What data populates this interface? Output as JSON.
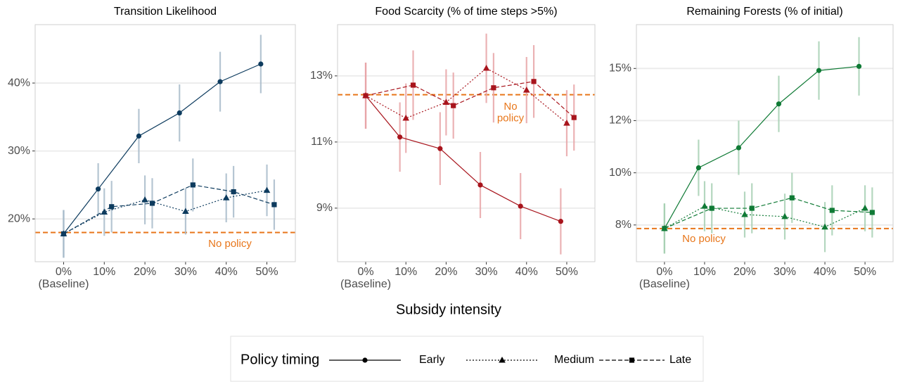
{
  "chart_data": [
    {
      "type": "line",
      "title": "Transition Likelihood",
      "categories": [
        "0%\n(Baseline)",
        "10%",
        "20%",
        "30%",
        "40%",
        "50%"
      ],
      "ylim": [
        13.7,
        48.6
      ],
      "yticks": [
        {
          "value": 20,
          "label": "20%"
        },
        {
          "value": 30,
          "label": "30%"
        },
        {
          "value": 40,
          "label": "40%"
        }
      ],
      "grid": true,
      "error_color": "#a9bccb",
      "reference": {
        "value": 18.0,
        "label": "No policy",
        "color": "#e8761a"
      },
      "series": [
        {
          "name": "Early",
          "color": "#0d3b5e",
          "line_style": "solid",
          "marker": "circle",
          "values": [
            17.8,
            24.4,
            32.2,
            35.6,
            40.2,
            42.8
          ],
          "errors": [
            3.5,
            3.8,
            4.0,
            4.2,
            4.4,
            4.3
          ]
        },
        {
          "name": "Medium",
          "color": "#0d3b5e",
          "line_style": "dotted",
          "marker": "triangle",
          "values": [
            17.8,
            21.0,
            22.8,
            21.1,
            23.1,
            24.2
          ],
          "errors": [
            3.5,
            3.5,
            3.6,
            3.4,
            3.6,
            3.8
          ]
        },
        {
          "name": "Late",
          "color": "#0d3b5e",
          "line_style": "dashed",
          "marker": "square",
          "values": [
            17.8,
            21.8,
            22.3,
            25.0,
            24.0,
            22.1
          ],
          "errors": [
            3.5,
            3.8,
            3.7,
            3.9,
            3.8,
            3.7
          ]
        }
      ]
    },
    {
      "type": "line",
      "title": "Food Scarcity (% of time steps >5%)",
      "categories": [
        "0%\n(Baseline)",
        "10%",
        "20%",
        "30%",
        "40%",
        "50%"
      ],
      "ylim": [
        7.38,
        14.55
      ],
      "yticks": [
        {
          "value": 9,
          "label": "9%"
        },
        {
          "value": 11,
          "label": "11%"
        },
        {
          "value": 13,
          "label": "13%"
        }
      ],
      "grid": true,
      "error_color": "#e8a5a8",
      "reference": {
        "value": 12.43,
        "label": "No\npolicy",
        "color": "#e8761a"
      },
      "series": [
        {
          "name": "Early",
          "color": "#a8141c",
          "line_style": "solid",
          "marker": "circle",
          "values": [
            12.4,
            11.15,
            10.8,
            9.7,
            9.06,
            8.6
          ],
          "errors": [
            1.0,
            1.05,
            1.1,
            1.0,
            1.0,
            1.0
          ]
        },
        {
          "name": "Medium",
          "color": "#a8141c",
          "line_style": "dotted",
          "marker": "triangle",
          "values": [
            12.4,
            11.72,
            12.2,
            13.23,
            12.57,
            11.57
          ],
          "errors": [
            1.0,
            1.05,
            1.0,
            1.05,
            1.0,
            1.0
          ]
        },
        {
          "name": "Late",
          "color": "#a8141c",
          "line_style": "dashed",
          "marker": "square",
          "values": [
            12.4,
            12.72,
            12.1,
            12.64,
            12.83,
            11.74
          ],
          "errors": [
            1.0,
            1.05,
            1.0,
            1.05,
            1.1,
            1.0
          ]
        }
      ]
    },
    {
      "type": "line",
      "title": "Remaining Forests (% of initial)",
      "categories": [
        "0%\n(Baseline)",
        "10%",
        "20%",
        "30%",
        "40%",
        "50%"
      ],
      "ylim": [
        5.74,
        17.1
      ],
      "yticks": [
        {
          "value": 7.5,
          "label": "8%"
        },
        {
          "value": 10,
          "label": "10%"
        },
        {
          "value": 12.5,
          "label": "12%"
        },
        {
          "value": 15,
          "label": "15%"
        }
      ],
      "grid": true,
      "error_color": "#a8d1b4",
      "reference": {
        "value": 7.33,
        "label": "No policy",
        "color": "#e8761a"
      },
      "series": [
        {
          "name": "Early",
          "color": "#0f7a35",
          "line_style": "solid",
          "marker": "circle",
          "values": [
            7.33,
            10.24,
            11.2,
            13.3,
            14.9,
            15.1
          ],
          "errors": [
            1.2,
            1.35,
            1.3,
            1.35,
            1.4,
            1.4
          ]
        },
        {
          "name": "Medium",
          "color": "#0f7a35",
          "line_style": "dotted",
          "marker": "triangle",
          "values": [
            7.33,
            8.4,
            8.0,
            7.9,
            7.4,
            8.3
          ],
          "errors": [
            1.2,
            1.2,
            1.1,
            1.1,
            1.2,
            1.1
          ]
        },
        {
          "name": "Late",
          "color": "#0f7a35",
          "line_style": "dashed",
          "marker": "square",
          "values": [
            7.33,
            8.3,
            8.3,
            8.8,
            8.2,
            8.1
          ],
          "errors": [
            1.2,
            1.2,
            1.2,
            1.2,
            1.2,
            1.2
          ]
        }
      ]
    }
  ],
  "xlabel": "Subsidy intensity",
  "legend_title": "Policy timing"
}
